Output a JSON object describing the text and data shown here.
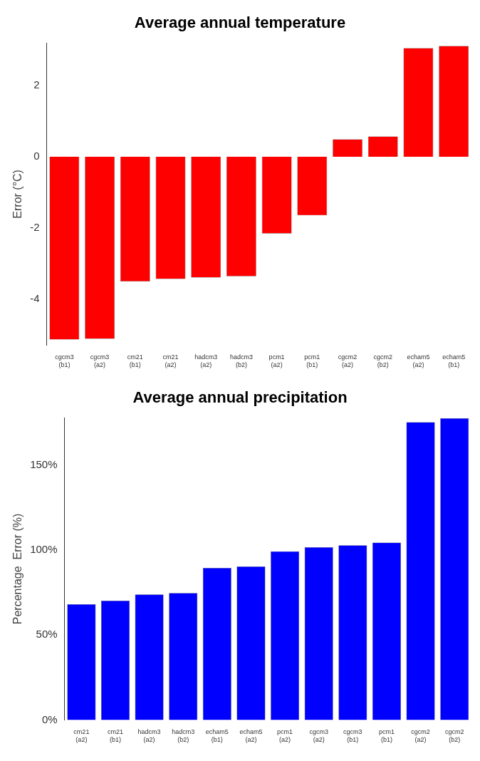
{
  "chart_data": [
    {
      "type": "bar",
      "title": "Average annual temperature",
      "ylabel": "Error (°C)",
      "categories": [
        "cgcm3 (b1)",
        "cgcm3 (a2)",
        "cm21 (b1)",
        "cm21 (a2)",
        "hadcm3 (a2)",
        "hadcm3 (b2)",
        "pcm1 (a2)",
        "pcm1 (b1)",
        "cgcm2 (a2)",
        "cgcm2 (b2)",
        "echam5 (a2)",
        "echam5 (b1)"
      ],
      "values": [
        -5.14,
        -5.12,
        -3.51,
        -3.44,
        -3.4,
        -3.36,
        -2.16,
        -1.65,
        0.49,
        0.57,
        3.06,
        3.12
      ],
      "color": "#ff0000",
      "ylim": [
        -5.3,
        3.2
      ],
      "yticks": [
        -4,
        -2,
        0,
        2
      ]
    },
    {
      "type": "bar",
      "title": "Average annual precipitation",
      "ylabel": "Percentage  Error (%)",
      "categories": [
        "cm21 (a2)",
        "cm21 (b1)",
        "hadcm3 (a2)",
        "hadcm3 (b2)",
        "echam5 (b1)",
        "echam5 (a2)",
        "pcm1 (a2)",
        "cgcm3 (a2)",
        "cgcm3 (b1)",
        "pcm1 (b1)",
        "cgcm2 (a2)",
        "cgcm2 (b2)"
      ],
      "values": [
        68.2,
        70.3,
        74,
        74.8,
        89.6,
        90.4,
        99.4,
        101.8,
        102.9,
        104.5,
        175.4,
        177.7
      ],
      "color": "#0000ff",
      "ylim": [
        0,
        178
      ],
      "yticks": [
        {
          "value": 0,
          "label": "0%"
        },
        {
          "value": 50,
          "label": "50%"
        },
        {
          "value": 100,
          "label": "100%"
        },
        {
          "value": 150,
          "label": "150%"
        }
      ]
    }
  ]
}
